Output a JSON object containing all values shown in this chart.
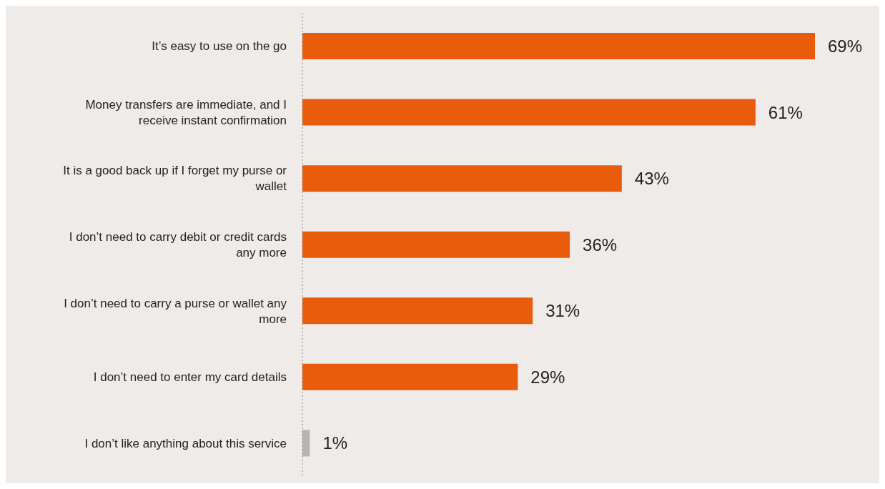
{
  "chart_data": {
    "type": "bar",
    "orientation": "horizontal",
    "categories": [
      "It’s easy to use on the go",
      "Money transfers are immediate, and I receive instant confirmation",
      "It is a good back up if I forget my purse or wallet",
      "I don’t need to carry debit or credit cards any more",
      "I don’t need to carry a purse or wallet any more",
      "I don’t need to enter my card details",
      "I don’t like anything about this service"
    ],
    "values": [
      69,
      61,
      43,
      36,
      31,
      29,
      1
    ],
    "colors": [
      "#e95c0c",
      "#e95c0c",
      "#e95c0c",
      "#e95c0c",
      "#e95c0c",
      "#e95c0c",
      "#b4b4b4"
    ],
    "value_labels": [
      "69%",
      "61%",
      "43%",
      "36%",
      "31%",
      "29%",
      "1%"
    ],
    "grid": false,
    "legend": false
  }
}
